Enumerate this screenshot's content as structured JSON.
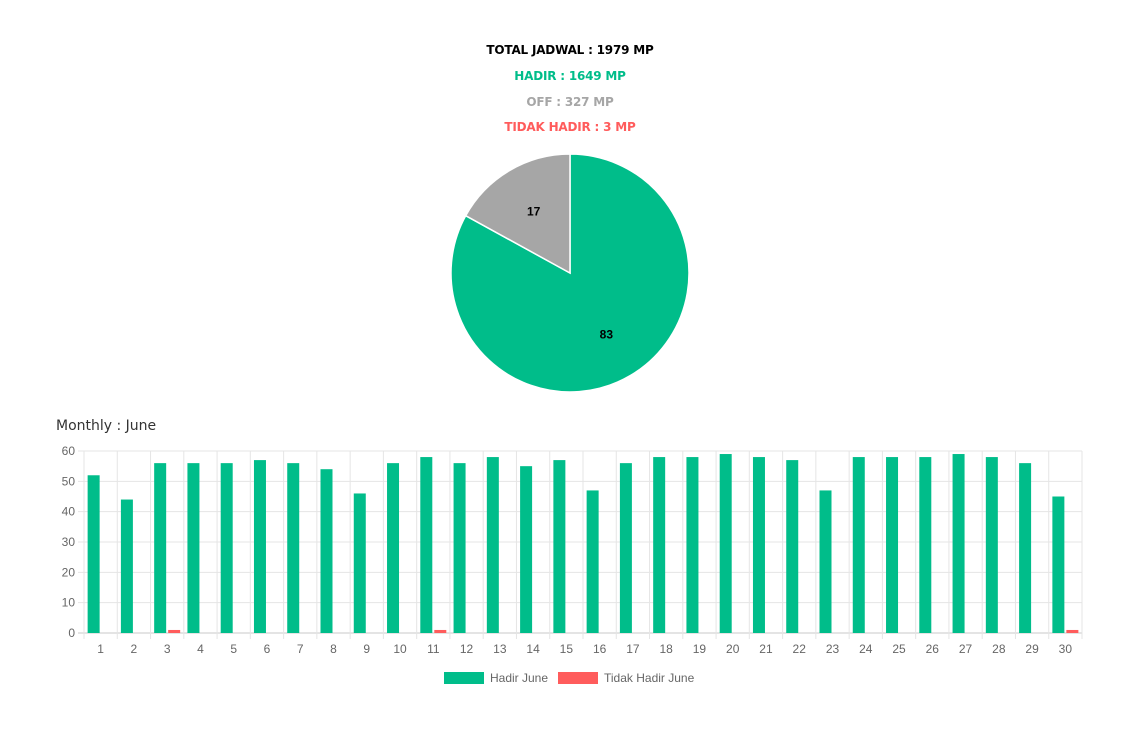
{
  "summary": {
    "total_label": "TOTAL JADWAL : 1979 MP",
    "hadir_label": "HADIR : 1649 MP",
    "off_label": "OFF : 327 MP",
    "tidak_hadir_label": "TIDAK HADIR : 3 MP"
  },
  "colors": {
    "hadir": "#00bd8a",
    "off": "#a6a6a6",
    "tidak_hadir": "#ff5c5c",
    "text": "#000000",
    "grid": "#e5e5e5",
    "axis_text": "#666666"
  },
  "monthly": {
    "title": "Monthly : June"
  },
  "chart_data": [
    {
      "type": "pie",
      "slices": [
        {
          "name": "Hadir",
          "value": 83,
          "label": "83",
          "color": "#00bd8a"
        },
        {
          "name": "Off",
          "value": 17,
          "label": "17",
          "color": "#a6a6a6"
        }
      ]
    },
    {
      "type": "bar",
      "title": "Monthly : June",
      "categories": [
        "1",
        "2",
        "3",
        "4",
        "5",
        "6",
        "7",
        "8",
        "9",
        "10",
        "11",
        "12",
        "13",
        "14",
        "15",
        "16",
        "17",
        "18",
        "19",
        "20",
        "21",
        "22",
        "23",
        "24",
        "25",
        "26",
        "27",
        "28",
        "29",
        "30"
      ],
      "series": [
        {
          "name": "Hadir June",
          "color": "#00bd8a",
          "values": [
            52,
            44,
            56,
            56,
            56,
            57,
            56,
            54,
            46,
            56,
            58,
            56,
            58,
            55,
            57,
            47,
            56,
            58,
            58,
            59,
            58,
            57,
            47,
            58,
            58,
            58,
            59,
            58,
            56,
            45
          ]
        },
        {
          "name": "Tidak Hadir June",
          "color": "#ff5c5c",
          "values": [
            0,
            0,
            1,
            0,
            0,
            0,
            0,
            0,
            0,
            0,
            1,
            0,
            0,
            0,
            0,
            0,
            0,
            0,
            0,
            0,
            0,
            0,
            0,
            0,
            0,
            0,
            0,
            0,
            0,
            1
          ]
        }
      ],
      "yticks": [
        0,
        10,
        20,
        30,
        40,
        50,
        60
      ],
      "ylim": [
        0,
        60
      ],
      "grid": true,
      "legend": "bottom"
    }
  ]
}
